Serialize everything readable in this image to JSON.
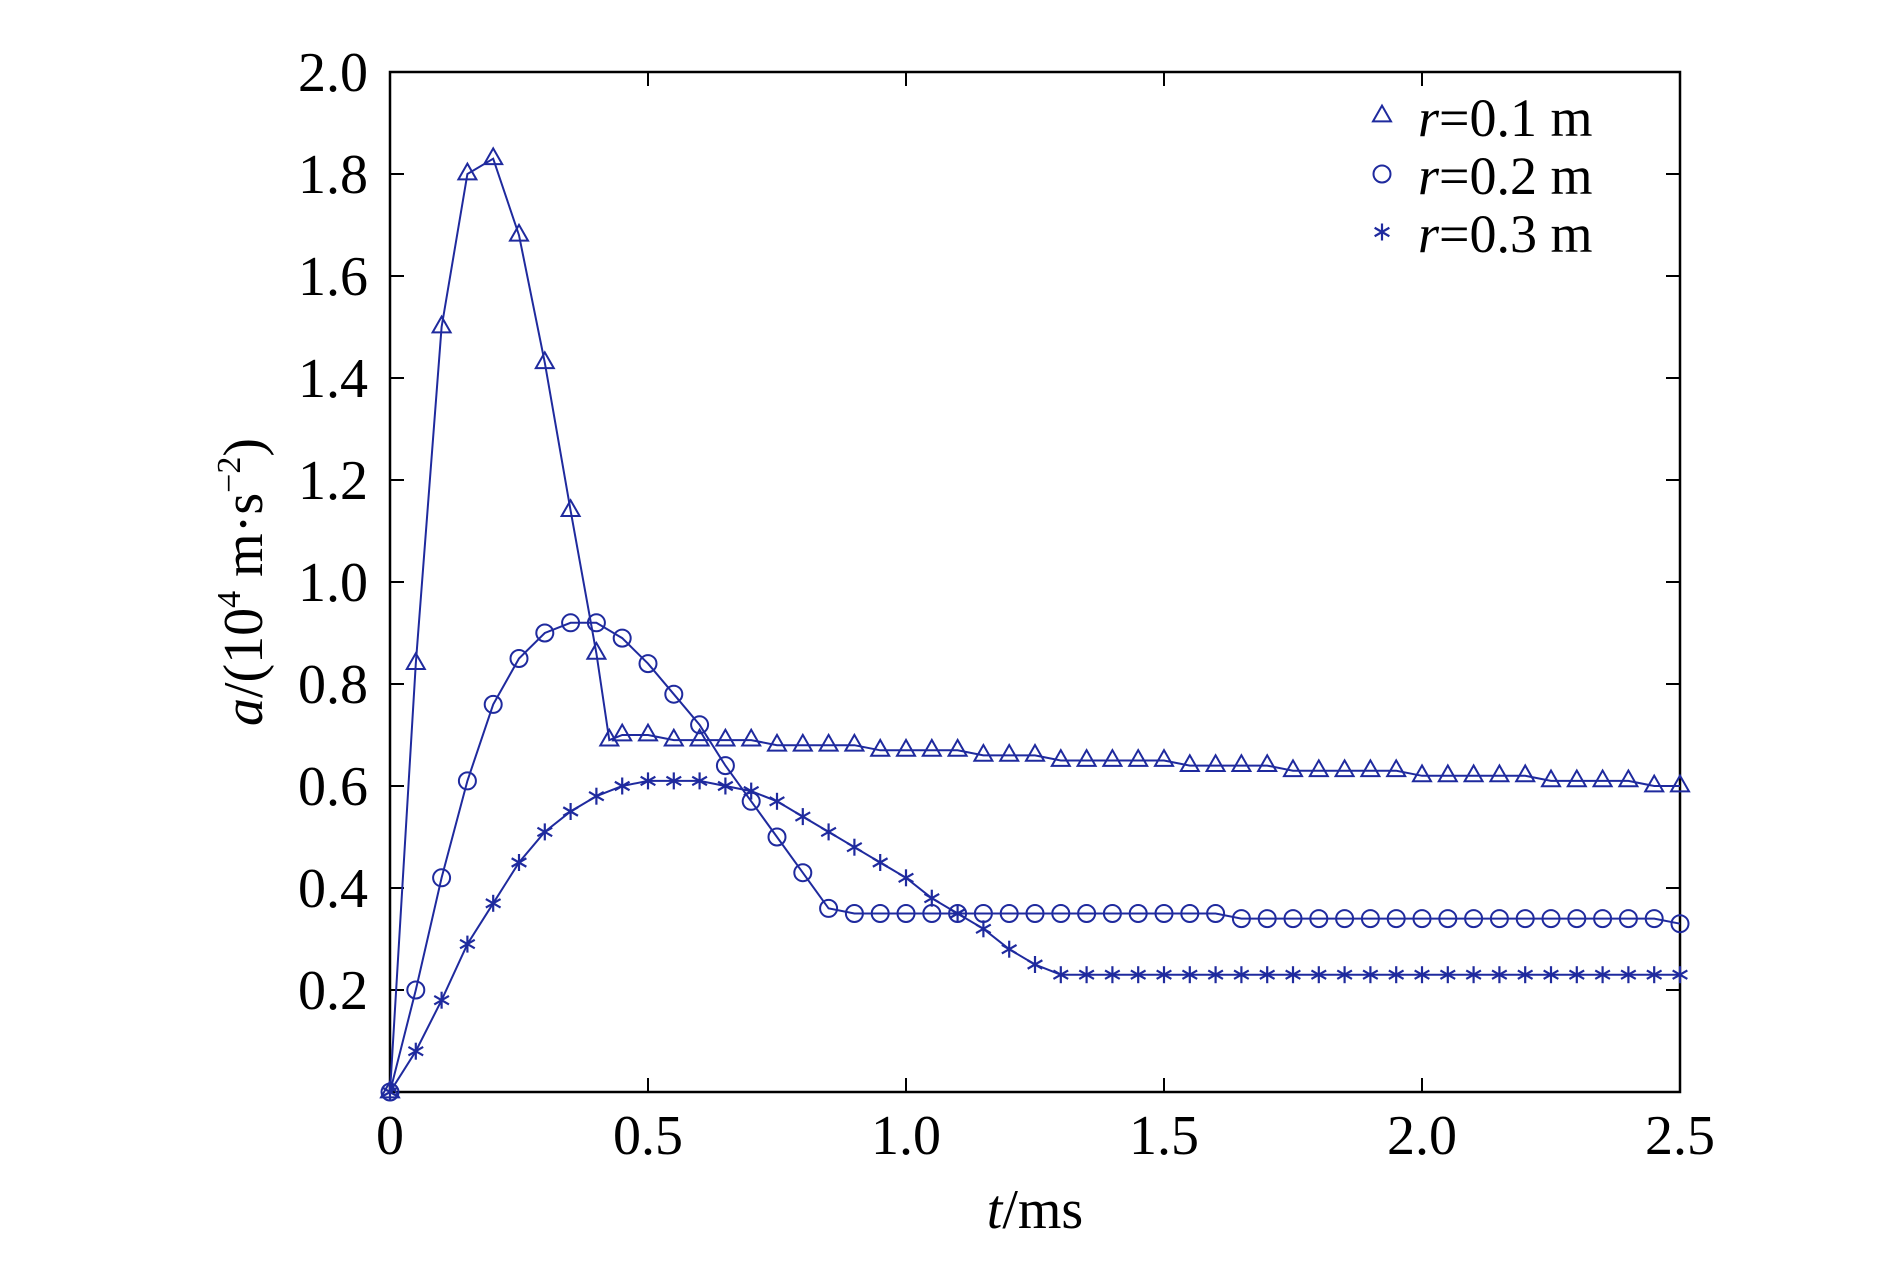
{
  "chart_data": {
    "type": "line",
    "xlabel": {
      "italic": "t",
      "rest": "/ms"
    },
    "ylabel": {
      "italic": "a",
      "rest1": "/(10",
      "sup1": "4",
      "rest2": " m·s",
      "sup2": "−2",
      "rest3": ")"
    },
    "xlim": [
      0,
      2.5
    ],
    "ylim": [
      0,
      2.0
    ],
    "xticks": [
      0,
      0.5,
      1.0,
      1.5,
      2.0,
      2.5
    ],
    "xtick_labels": [
      "0",
      "0.5",
      "1.0",
      "1.5",
      "2.0",
      "2.5"
    ],
    "yticks": [
      0.2,
      0.4,
      0.6,
      0.8,
      1.0,
      1.2,
      1.4,
      1.6,
      1.8,
      2.0
    ],
    "ytick_labels": [
      "0.2",
      "0.4",
      "0.6",
      "0.8",
      "1.0",
      "1.2",
      "1.4",
      "1.6",
      "1.8",
      "2.0"
    ],
    "grid": false,
    "legend_position": "top-right",
    "color": "#1f2a9e",
    "series": [
      {
        "name_italic": "r",
        "name_rest": "=0.1 m",
        "marker": "triangle",
        "x": [
          0,
          0.05,
          0.1,
          0.15,
          0.2,
          0.25,
          0.3,
          0.35,
          0.4,
          0.425,
          0.45,
          0.5,
          0.55,
          0.6,
          0.65,
          0.7,
          0.75,
          0.8,
          0.85,
          0.9,
          0.95,
          1.0,
          1.05,
          1.1,
          1.15,
          1.2,
          1.25,
          1.3,
          1.35,
          1.4,
          1.45,
          1.5,
          1.55,
          1.6,
          1.65,
          1.7,
          1.75,
          1.8,
          1.85,
          1.9,
          1.95,
          2.0,
          2.05,
          2.1,
          2.15,
          2.2,
          2.25,
          2.3,
          2.35,
          2.4,
          2.45,
          2.5
        ],
        "y": [
          0,
          0.84,
          1.5,
          1.8,
          1.83,
          1.68,
          1.43,
          1.14,
          0.86,
          0.69,
          0.7,
          0.7,
          0.69,
          0.69,
          0.69,
          0.69,
          0.68,
          0.68,
          0.68,
          0.68,
          0.67,
          0.67,
          0.67,
          0.67,
          0.66,
          0.66,
          0.66,
          0.65,
          0.65,
          0.65,
          0.65,
          0.65,
          0.64,
          0.64,
          0.64,
          0.64,
          0.63,
          0.63,
          0.63,
          0.63,
          0.63,
          0.62,
          0.62,
          0.62,
          0.62,
          0.62,
          0.61,
          0.61,
          0.61,
          0.61,
          0.6,
          0.6
        ]
      },
      {
        "name_italic": "r",
        "name_rest": "=0.2 m",
        "marker": "circle",
        "x": [
          0,
          0.05,
          0.1,
          0.15,
          0.2,
          0.25,
          0.3,
          0.35,
          0.4,
          0.45,
          0.5,
          0.55,
          0.6,
          0.65,
          0.7,
          0.75,
          0.8,
          0.85,
          0.9,
          0.95,
          1.0,
          1.05,
          1.1,
          1.15,
          1.2,
          1.25,
          1.3,
          1.35,
          1.4,
          1.45,
          1.5,
          1.55,
          1.6,
          1.65,
          1.7,
          1.75,
          1.8,
          1.85,
          1.9,
          1.95,
          2.0,
          2.05,
          2.1,
          2.15,
          2.2,
          2.25,
          2.3,
          2.35,
          2.4,
          2.45,
          2.5
        ],
        "y": [
          0,
          0.2,
          0.42,
          0.61,
          0.76,
          0.85,
          0.9,
          0.92,
          0.92,
          0.89,
          0.84,
          0.78,
          0.72,
          0.64,
          0.57,
          0.5,
          0.43,
          0.36,
          0.35,
          0.35,
          0.35,
          0.35,
          0.35,
          0.35,
          0.35,
          0.35,
          0.35,
          0.35,
          0.35,
          0.35,
          0.35,
          0.35,
          0.35,
          0.34,
          0.34,
          0.34,
          0.34,
          0.34,
          0.34,
          0.34,
          0.34,
          0.34,
          0.34,
          0.34,
          0.34,
          0.34,
          0.34,
          0.34,
          0.34,
          0.34,
          0.33
        ]
      },
      {
        "name_italic": "r",
        "name_rest": "=0.3 m",
        "marker": "asterisk",
        "x": [
          0,
          0.05,
          0.1,
          0.15,
          0.2,
          0.25,
          0.3,
          0.35,
          0.4,
          0.45,
          0.5,
          0.55,
          0.6,
          0.65,
          0.7,
          0.75,
          0.8,
          0.85,
          0.9,
          0.95,
          1.0,
          1.05,
          1.1,
          1.15,
          1.2,
          1.25,
          1.3,
          1.35,
          1.4,
          1.45,
          1.5,
          1.55,
          1.6,
          1.65,
          1.7,
          1.75,
          1.8,
          1.85,
          1.9,
          1.95,
          2.0,
          2.05,
          2.1,
          2.15,
          2.2,
          2.25,
          2.3,
          2.35,
          2.4,
          2.45,
          2.5
        ],
        "y": [
          0,
          0.08,
          0.18,
          0.29,
          0.37,
          0.45,
          0.51,
          0.55,
          0.58,
          0.6,
          0.61,
          0.61,
          0.61,
          0.6,
          0.59,
          0.57,
          0.54,
          0.51,
          0.48,
          0.45,
          0.42,
          0.38,
          0.35,
          0.32,
          0.28,
          0.25,
          0.23,
          0.23,
          0.23,
          0.23,
          0.23,
          0.23,
          0.23,
          0.23,
          0.23,
          0.23,
          0.23,
          0.23,
          0.23,
          0.23,
          0.23,
          0.23,
          0.23,
          0.23,
          0.23,
          0.23,
          0.23,
          0.23,
          0.23,
          0.23,
          0.23
        ]
      }
    ]
  }
}
